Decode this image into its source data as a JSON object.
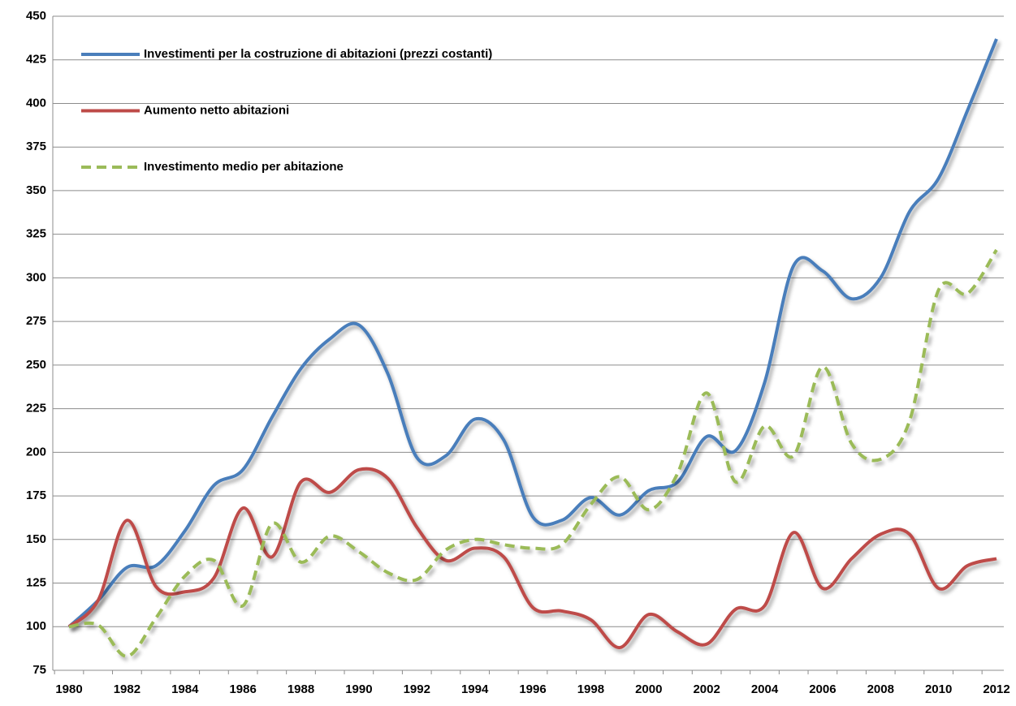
{
  "chart_data": {
    "type": "line",
    "categories": [
      "1980",
      null,
      "1982",
      null,
      "1984",
      null,
      "1986",
      null,
      "1988",
      null,
      "1990",
      null,
      "1992",
      null,
      "1994",
      null,
      "1996",
      null,
      "1998",
      null,
      "2000",
      null,
      "2002",
      null,
      "2004",
      null,
      "2006",
      null,
      "2008",
      null,
      "2010",
      null,
      "2012"
    ],
    "series": [
      {
        "name": "Investimenti per la costruzione di abitazioni (prezzi costanti)",
        "color": "#4a7ebb",
        "dashed": false,
        "values": [
          100,
          115,
          134,
          135,
          155,
          181,
          190,
          220,
          248,
          265,
          273,
          245,
          197,
          198,
          219,
          207,
          163,
          161,
          174,
          164,
          178,
          183,
          209,
          201,
          240,
          307,
          304,
          288,
          300,
          338,
          357,
          396,
          437
        ]
      },
      {
        "name": "Aumento netto abitazioni",
        "color": "#be4b48",
        "dashed": false,
        "values": [
          100,
          115,
          161,
          123,
          120,
          128,
          168,
          140,
          183,
          177,
          190,
          185,
          157,
          138,
          145,
          140,
          111,
          109,
          104,
          88,
          107,
          97,
          90,
          110,
          112,
          154,
          122,
          139,
          153,
          153,
          122,
          135,
          139
        ]
      },
      {
        "name": "Investimento medio per abitazione",
        "color": "#9bbb59",
        "dashed": true,
        "values": [
          100,
          101,
          83,
          105,
          129,
          138,
          112,
          159,
          137,
          152,
          143,
          131,
          127,
          144,
          150,
          147,
          145,
          147,
          170,
          186,
          167,
          188,
          234,
          183,
          215,
          198,
          249,
          205,
          196,
          218,
          293,
          291,
          316
        ]
      }
    ],
    "ylim": [
      75,
      450
    ],
    "yticks": [
      75,
      100,
      125,
      150,
      175,
      200,
      225,
      250,
      275,
      300,
      325,
      350,
      375,
      400,
      425,
      450
    ],
    "grid": true,
    "legend": "upper left"
  }
}
